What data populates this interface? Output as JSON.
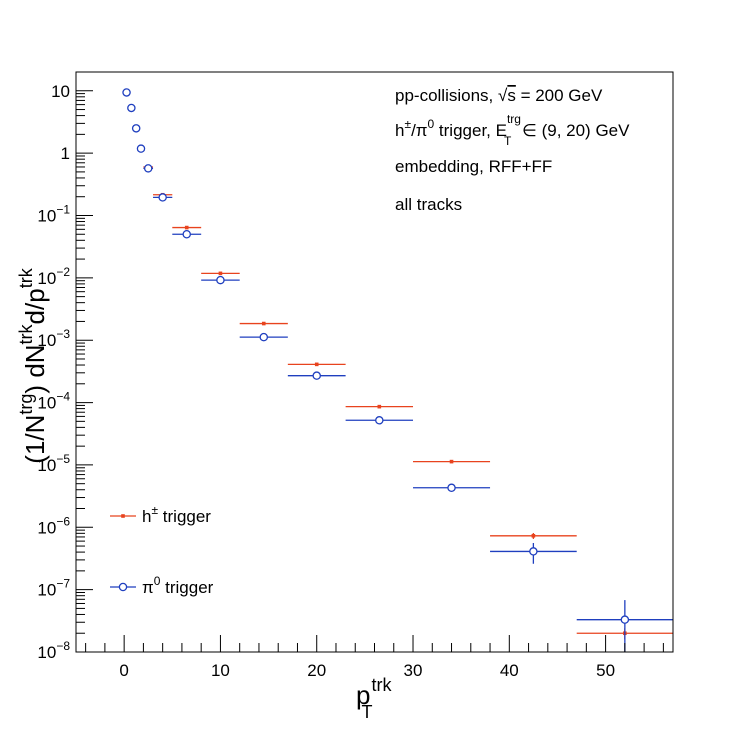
{
  "chart_data": {
    "type": "scatter",
    "x_scale": "linear",
    "y_scale": "log",
    "xlim": [
      -5,
      57
    ],
    "ylim": [
      1e-08,
      20
    ],
    "grid": false,
    "legend_position": "left",
    "xlabel": {
      "base": "p",
      "sup": "trk",
      "sub": "T"
    },
    "ylabel": "(1/N^{trg}) dN^{trk}d/p_{T}^{trk}",
    "x_ticks": [
      {
        "value": 0,
        "label": "0"
      },
      {
        "value": 10,
        "label": "10"
      },
      {
        "value": 20,
        "label": "20"
      },
      {
        "value": 30,
        "label": "30"
      },
      {
        "value": 40,
        "label": "40"
      },
      {
        "value": 50,
        "label": "50"
      }
    ],
    "y_ticks": [
      {
        "value": 10,
        "base": "10",
        "exp": ""
      },
      {
        "value": 1,
        "base": "1",
        "exp": ""
      },
      {
        "value": 0.1,
        "base": "10",
        "exp": "−1"
      },
      {
        "value": 0.01,
        "base": "10",
        "exp": "−2"
      },
      {
        "value": 0.001,
        "base": "10",
        "exp": "−3"
      },
      {
        "value": 0.0001,
        "base": "10",
        "exp": "−4"
      },
      {
        "value": 1e-05,
        "base": "10",
        "exp": "−5"
      },
      {
        "value": 1e-06,
        "base": "10",
        "exp": "−6"
      },
      {
        "value": 1e-07,
        "base": "10",
        "exp": "−7"
      },
      {
        "value": 1e-08,
        "base": "10",
        "exp": "−8"
      }
    ],
    "annotations": [
      {
        "parts": [
          "pp-collisions, ",
          "√",
          "s",
          " = 200 GeV"
        ]
      },
      {
        "parts": [
          "h",
          "±",
          "/π",
          "0",
          " trigger, E",
          "trg",
          "T",
          " ∈ (9, 20) GeV"
        ]
      },
      {
        "text": "embedding, RFF+FF"
      },
      {
        "text": "all tracks"
      }
    ],
    "series": [
      {
        "name": "h± trigger",
        "legend_base": "h",
        "legend_sup": "±",
        "legend_rest": " trigger",
        "color": "#e8431e",
        "marker": "dot",
        "points": [
          {
            "x": 0.25,
            "xerr": 0.25,
            "y": 9.6,
            "yerr": 0
          },
          {
            "x": 0.75,
            "xerr": 0.25,
            "y": 5.4,
            "yerr": 0
          },
          {
            "x": 1.25,
            "xerr": 0.25,
            "y": 2.55,
            "yerr": 0
          },
          {
            "x": 1.75,
            "xerr": 0.25,
            "y": 1.22,
            "yerr": 0
          },
          {
            "x": 2.5,
            "xerr": 0.5,
            "y": 0.6,
            "yerr": 0
          },
          {
            "x": 4.0,
            "xerr": 1.0,
            "y": 0.215,
            "yerr": 0
          },
          {
            "x": 6.5,
            "xerr": 1.5,
            "y": 0.064,
            "yerr": 0
          },
          {
            "x": 10.0,
            "xerr": 2.0,
            "y": 0.0118,
            "yerr": 0
          },
          {
            "x": 14.5,
            "xerr": 2.5,
            "y": 0.00185,
            "yerr": 0
          },
          {
            "x": 20.0,
            "xerr": 3.0,
            "y": 0.00041,
            "yerr": 0
          },
          {
            "x": 26.5,
            "xerr": 3.5,
            "y": 8.6e-05,
            "yerr": 0
          },
          {
            "x": 34.0,
            "xerr": 4.0,
            "y": 1.13e-05,
            "yerr": 0
          },
          {
            "x": 42.5,
            "xerr": 4.5,
            "y": 7.3e-07,
            "yerr": 8e-08
          },
          {
            "x": 52.0,
            "xerr": 5.0,
            "y": 2e-08,
            "yerr": 4e-09
          }
        ]
      },
      {
        "name": "π0 trigger",
        "legend_base": "π",
        "legend_sup": "0",
        "legend_rest": " trigger",
        "color": "#1f3fbf",
        "marker": "open-circle",
        "points": [
          {
            "x": 0.25,
            "xerr": 0.25,
            "y": 9.4,
            "yerr": 0
          },
          {
            "x": 0.75,
            "xerr": 0.25,
            "y": 5.3,
            "yerr": 0
          },
          {
            "x": 1.25,
            "xerr": 0.25,
            "y": 2.5,
            "yerr": 0
          },
          {
            "x": 1.75,
            "xerr": 0.25,
            "y": 1.18,
            "yerr": 0
          },
          {
            "x": 2.5,
            "xerr": 0.5,
            "y": 0.57,
            "yerr": 0
          },
          {
            "x": 4.0,
            "xerr": 1.0,
            "y": 0.195,
            "yerr": 0
          },
          {
            "x": 6.5,
            "xerr": 1.5,
            "y": 0.05,
            "yerr": 0
          },
          {
            "x": 10.0,
            "xerr": 2.0,
            "y": 0.0092,
            "yerr": 0
          },
          {
            "x": 14.5,
            "xerr": 2.5,
            "y": 0.00112,
            "yerr": 0
          },
          {
            "x": 20.0,
            "xerr": 3.0,
            "y": 0.00027,
            "yerr": 0
          },
          {
            "x": 26.5,
            "xerr": 3.5,
            "y": 5.2e-05,
            "yerr": 0
          },
          {
            "x": 34.0,
            "xerr": 4.0,
            "y": 4.3e-06,
            "yerr": 0
          },
          {
            "x": 42.5,
            "xerr": 4.5,
            "y": 4.1e-07,
            "yerr": 1.5e-07
          },
          {
            "x": 52.0,
            "xerr": 5.0,
            "y": 3.3e-08,
            "yerr": 3.5e-08
          }
        ]
      }
    ]
  }
}
